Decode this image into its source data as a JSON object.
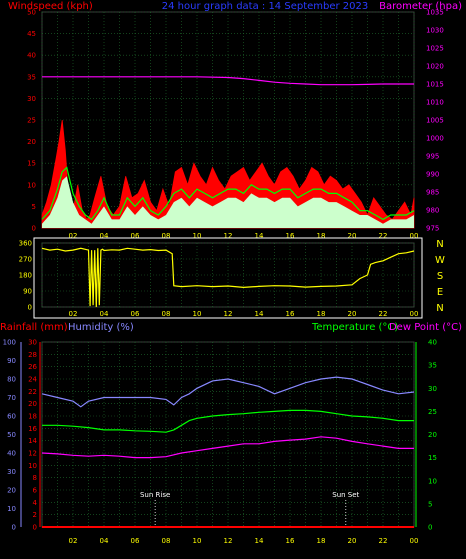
{
  "header": {
    "left": "Windspeed (kph)",
    "center": "24 hour graph data : 14 September 2023",
    "right": "Barometer (hpa)"
  },
  "colors": {
    "background": "#000000",
    "grid": "#1f6b2c",
    "wind_gust": "#ff0000",
    "wind_avg": "#00ff00",
    "wind_speed": "#ccffcc",
    "barometer": "#ff00ff",
    "wind_dir": "#ffff00",
    "rain": "#ff0000",
    "humidity": "#8888ff",
    "temperature": "#00ff00",
    "dewpoint": "#ff00ff",
    "axis_left_wind": "#ff0000",
    "axis_right_baro": "#ff00ff",
    "axis_dir": "#ffff00",
    "axis_rain": "#ff0000",
    "axis_hum": "#8888ff",
    "axis_temp": "#00ff00",
    "time_labels": "#ffff00"
  },
  "chart_data": [
    {
      "type": "area",
      "panel": "wind",
      "x_ticks": [
        "02",
        "04",
        "06",
        "08",
        "10",
        "12",
        "14",
        "16",
        "18",
        "20",
        "22",
        "00"
      ],
      "y_left": {
        "label": "Windspeed (kph)",
        "ticks": [
          0,
          5,
          10,
          15,
          20,
          25,
          30,
          35,
          40,
          45,
          50
        ],
        "range": [
          0,
          50
        ]
      },
      "y_right": {
        "label": "Barometer (hpa)",
        "ticks": [
          975,
          980,
          985,
          990,
          995,
          1000,
          1005,
          1010,
          1015,
          1020,
          1025,
          1030,
          1035
        ],
        "range": [
          975,
          1035
        ]
      },
      "series": [
        {
          "name": "Gust",
          "x": [
            0.0,
            0.3,
            0.6,
            0.9,
            1.1,
            1.3,
            1.5,
            1.7,
            1.9,
            2.1,
            2.3,
            2.6,
            2.9,
            3.1,
            3.4,
            3.8,
            4.2,
            4.6,
            5.0,
            5.4,
            5.8,
            6.2,
            6.6,
            7.0,
            7.4,
            7.8,
            8.2,
            8.6,
            9.0,
            9.4,
            9.8,
            10.2,
            10.6,
            11.0,
            11.4,
            11.8,
            12.2,
            12.6,
            13.0,
            13.4,
            13.8,
            14.2,
            14.6,
            15.0,
            15.4,
            15.8,
            16.2,
            16.6,
            17.0,
            17.4,
            17.8,
            18.2,
            18.6,
            19.0,
            19.4,
            19.8,
            20.2,
            20.6,
            21.0,
            21.4,
            21.8,
            22.2,
            22.6,
            23.0,
            23.4,
            23.8,
            24.0
          ],
          "values": [
            3,
            6,
            10,
            16,
            20,
            25,
            18,
            8,
            4,
            6,
            10,
            4,
            2,
            3,
            7,
            12,
            5,
            3,
            5,
            12,
            7,
            8,
            11,
            6,
            4,
            9,
            5,
            13,
            14,
            10,
            15,
            12,
            10,
            14,
            11,
            9,
            12,
            13,
            14,
            11,
            13,
            15,
            12,
            10,
            13,
            14,
            12,
            9,
            11,
            14,
            13,
            10,
            12,
            11,
            9,
            10,
            8,
            6,
            3,
            7,
            5,
            3,
            2,
            4,
            6,
            3,
            7
          ]
        },
        {
          "name": "Average",
          "x": [
            0.0,
            0.5,
            1.0,
            1.3,
            1.6,
            2.0,
            2.4,
            2.8,
            3.2,
            3.6,
            4.0,
            4.5,
            5.0,
            5.5,
            6.0,
            6.5,
            7.0,
            7.5,
            8.0,
            8.5,
            9.0,
            9.5,
            10.0,
            10.5,
            11.0,
            11.5,
            12.0,
            12.5,
            13.0,
            13.5,
            14.0,
            14.5,
            15.0,
            15.5,
            16.0,
            16.5,
            17.0,
            17.5,
            18.0,
            18.5,
            19.0,
            19.5,
            20.0,
            20.5,
            21.0,
            21.5,
            22.0,
            22.5,
            23.0,
            23.5,
            24.0
          ],
          "values": [
            2,
            4,
            9,
            13,
            14,
            8,
            5,
            3,
            2,
            4,
            7,
            3,
            3,
            7,
            5,
            7,
            4,
            3,
            5,
            8,
            9,
            7,
            9,
            8,
            7,
            8,
            9,
            9,
            8,
            10,
            9,
            9,
            8,
            9,
            9,
            7,
            8,
            9,
            9,
            8,
            8,
            7,
            6,
            4,
            4,
            3,
            2,
            3,
            3,
            3,
            4
          ]
        },
        {
          "name": "Speed",
          "x": [
            0.0,
            0.5,
            1.0,
            1.3,
            1.6,
            2.0,
            2.4,
            2.8,
            3.2,
            3.6,
            4.0,
            4.5,
            5.0,
            5.5,
            6.0,
            6.5,
            7.0,
            7.5,
            8.0,
            8.5,
            9.0,
            9.5,
            10.0,
            10.5,
            11.0,
            11.5,
            12.0,
            12.5,
            13.0,
            13.5,
            14.0,
            14.5,
            15.0,
            15.5,
            16.0,
            16.5,
            17.0,
            17.5,
            18.0,
            18.5,
            19.0,
            19.5,
            20.0,
            20.5,
            21.0,
            21.5,
            22.0,
            22.5,
            23.0,
            23.5,
            24.0
          ],
          "values": [
            1,
            3,
            7,
            11,
            12,
            6,
            3,
            2,
            1,
            3,
            5,
            2,
            2,
            5,
            3,
            5,
            3,
            2,
            3,
            6,
            7,
            5,
            7,
            6,
            5,
            6,
            7,
            7,
            6,
            8,
            7,
            7,
            6,
            7,
            7,
            5,
            6,
            7,
            7,
            6,
            6,
            5,
            4,
            3,
            3,
            2,
            1,
            2,
            2,
            2,
            3
          ]
        },
        {
          "name": "Barometer",
          "axis": "right",
          "x": [
            0,
            2,
            4,
            6,
            8,
            10,
            12,
            13,
            14,
            15,
            16,
            17,
            18,
            19,
            20,
            21,
            22,
            23,
            24
          ],
          "values": [
            1017,
            1017,
            1017,
            1017,
            1017,
            1017,
            1016.8,
            1016.5,
            1016,
            1015.5,
            1015.2,
            1015,
            1014.8,
            1014.8,
            1014.8,
            1014.9,
            1015,
            1015,
            1015
          ]
        }
      ]
    },
    {
      "type": "line",
      "panel": "wind_direction",
      "x_ticks": [
        "02",
        "04",
        "06",
        "08",
        "10",
        "12",
        "14",
        "16",
        "18",
        "20",
        "22",
        "00"
      ],
      "y_left": {
        "ticks": [
          0,
          90,
          180,
          270,
          360
        ],
        "range": [
          0,
          360
        ]
      },
      "y_right_labels": [
        "N",
        "W",
        "S",
        "E",
        "N"
      ],
      "series": [
        {
          "name": "Direction",
          "x": [
            0,
            0.5,
            1.0,
            1.5,
            2.0,
            2.5,
            3.0,
            3.1,
            3.2,
            3.3,
            3.4,
            3.5,
            3.6,
            3.7,
            3.8,
            3.9,
            4.0,
            4.5,
            5.0,
            5.5,
            6.0,
            6.5,
            7.0,
            7.5,
            8.0,
            8.4,
            8.5,
            9.0,
            10.0,
            11.0,
            12.0,
            13.0,
            14.0,
            15.0,
            16.0,
            17.0,
            18.0,
            19.0,
            20.0,
            20.5,
            21.0,
            21.2,
            21.5,
            22.0,
            22.5,
            23.0,
            23.5,
            24.0
          ],
          "values": [
            330,
            320,
            325,
            315,
            320,
            330,
            320,
            5,
            320,
            10,
            320,
            0,
            330,
            10,
            320,
            325,
            318,
            322,
            320,
            330,
            325,
            320,
            323,
            318,
            320,
            300,
            120,
            115,
            120,
            115,
            118,
            110,
            116,
            120,
            118,
            112,
            116,
            118,
            125,
            160,
            180,
            240,
            250,
            260,
            280,
            300,
            305,
            315
          ]
        }
      ]
    },
    {
      "type": "line",
      "panel": "temperature",
      "x_ticks": [
        "02",
        "04",
        "06",
        "08",
        "10",
        "12",
        "14",
        "16",
        "18",
        "20",
        "22",
        "00"
      ],
      "events": [
        {
          "label": "Sun Rise",
          "x": 7.3
        },
        {
          "label": "Sun Set",
          "x": 19.6
        }
      ],
      "axes": {
        "rain": {
          "label": "Rainfall (mm)",
          "ticks": [
            0,
            2,
            4,
            6,
            8,
            10,
            12,
            14,
            16,
            18,
            20,
            22,
            24,
            26,
            28,
            30
          ],
          "range": [
            0,
            30
          ]
        },
        "humidity": {
          "label": "Humidity (%)",
          "ticks": [
            0,
            10,
            20,
            30,
            40,
            50,
            60,
            70,
            80,
            90,
            100
          ],
          "range": [
            0,
            100
          ]
        },
        "temperature": {
          "label": "Temperature (°C)",
          "ticks": [
            0,
            5,
            10,
            15,
            20,
            25,
            30,
            35,
            40
          ],
          "range": [
            0,
            40
          ]
        },
        "dewpoint": {
          "label": "Dew Point (°C)"
        }
      },
      "series": [
        {
          "name": "Humidity",
          "axis": "humidity",
          "x": [
            0,
            1,
            2,
            2.5,
            3,
            4,
            5,
            6,
            7,
            8,
            8.5,
            9,
            9.5,
            10,
            11,
            12,
            13,
            14,
            15,
            16,
            17,
            18,
            19,
            20,
            21,
            22,
            23,
            24
          ],
          "values": [
            72,
            70,
            68,
            65,
            68,
            70,
            70,
            70,
            70,
            69,
            66,
            70,
            72,
            75,
            79,
            80,
            78,
            76,
            72,
            75,
            78,
            80,
            81,
            80,
            77,
            74,
            72,
            73
          ]
        },
        {
          "name": "Temperature",
          "axis": "temperature",
          "x": [
            0,
            1,
            2,
            3,
            4,
            5,
            6,
            7,
            8,
            8.5,
            9,
            9.5,
            10,
            11,
            12,
            13,
            14,
            15,
            16,
            17,
            18,
            19,
            20,
            21,
            22,
            23,
            24
          ],
          "values": [
            22,
            22,
            21.8,
            21.5,
            21,
            21,
            20.8,
            20.7,
            20.5,
            21,
            22,
            23,
            23.5,
            24,
            24.3,
            24.5,
            24.8,
            25,
            25.2,
            25.2,
            25,
            24.5,
            24,
            23.8,
            23.5,
            23,
            23
          ]
        },
        {
          "name": "Dew Point",
          "axis": "temperature",
          "x": [
            0,
            1,
            2,
            3,
            4,
            5,
            6,
            7,
            8,
            9,
            10,
            11,
            12,
            13,
            14,
            15,
            16,
            17,
            18,
            19,
            20,
            21,
            22,
            23,
            24
          ],
          "values": [
            16,
            15.8,
            15.5,
            15.3,
            15.5,
            15.3,
            15,
            15,
            15.2,
            16,
            16.5,
            17,
            17.5,
            18,
            18,
            18.5,
            18.8,
            19,
            19.5,
            19.2,
            18.5,
            18,
            17.5,
            17,
            17
          ]
        },
        {
          "name": "Rainfall",
          "axis": "rain",
          "x": [
            0,
            24
          ],
          "values": [
            0,
            0
          ]
        }
      ]
    }
  ]
}
